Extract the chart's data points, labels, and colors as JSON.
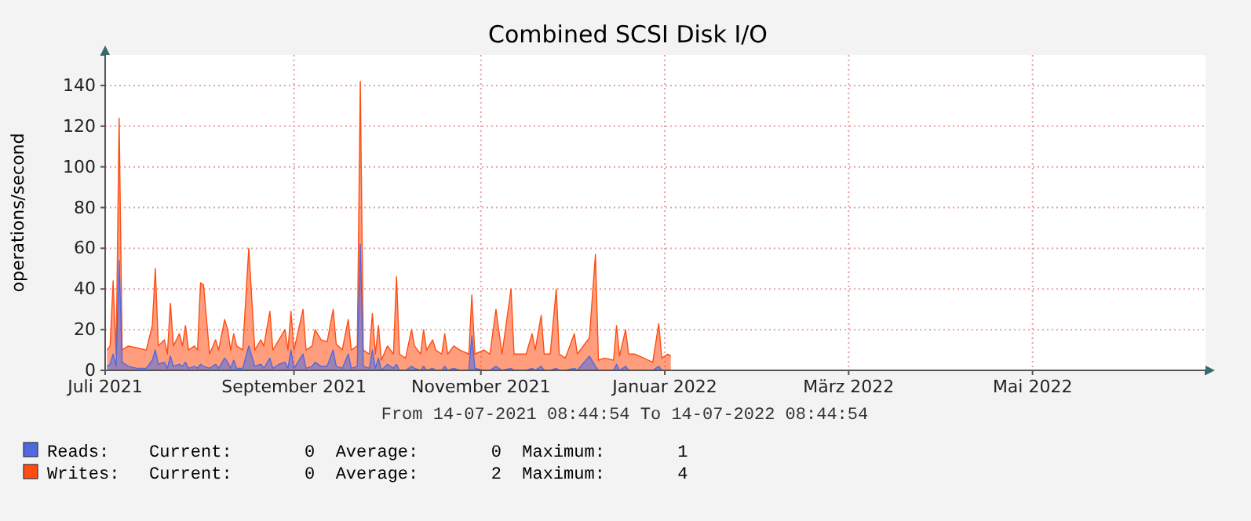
{
  "chart_data": {
    "type": "area",
    "title": "Combined SCSI Disk I/O",
    "ylabel": "operations/second",
    "x": [
      "2021-07-15",
      "2021-07-16",
      "2021-07-17",
      "2021-07-18",
      "2021-07-19",
      "2021-07-20",
      "2021-07-22",
      "2021-07-25",
      "2021-07-28",
      "2021-07-30",
      "2021-07-31",
      "2021-08-01",
      "2021-08-03",
      "2021-08-04",
      "2021-08-05",
      "2021-08-06",
      "2021-08-08",
      "2021-08-09",
      "2021-08-10",
      "2021-08-11",
      "2021-08-13",
      "2021-08-14",
      "2021-08-15",
      "2021-08-16",
      "2021-08-18",
      "2021-08-20",
      "2021-08-21",
      "2021-08-23",
      "2021-08-24",
      "2021-08-25",
      "2021-08-26",
      "2021-08-27",
      "2021-08-29",
      "2021-08-31",
      "2021-09-02",
      "2021-09-04",
      "2021-09-05",
      "2021-09-07",
      "2021-09-08",
      "2021-09-10",
      "2021-09-12",
      "2021-09-13",
      "2021-09-14",
      "2021-09-15",
      "2021-09-18",
      "2021-09-19",
      "2021-09-21",
      "2021-09-22",
      "2021-09-24",
      "2021-09-26",
      "2021-09-28",
      "2021-09-29",
      "2021-10-01",
      "2021-10-03",
      "2021-10-04",
      "2021-10-06",
      "2021-10-07",
      "2021-10-08",
      "2021-10-10",
      "2021-10-11",
      "2021-10-12",
      "2021-10-13",
      "2021-10-14",
      "2021-10-16",
      "2021-10-18",
      "2021-10-19",
      "2021-10-20",
      "2021-10-22",
      "2021-10-24",
      "2021-10-25",
      "2021-10-27",
      "2021-10-28",
      "2021-10-29",
      "2021-10-31",
      "2021-11-01",
      "2021-11-03",
      "2021-11-04",
      "2021-11-05",
      "2021-11-07",
      "2021-11-09",
      "2021-11-12",
      "2021-11-13",
      "2021-11-14",
      "2021-11-17",
      "2021-11-19",
      "2021-11-21",
      "2021-11-23",
      "2021-11-26",
      "2021-11-27",
      "2021-11-29",
      "2021-12-01",
      "2021-12-03",
      "2021-12-04",
      "2021-12-06",
      "2021-12-07",
      "2021-12-09",
      "2021-12-11",
      "2021-12-12",
      "2021-12-14",
      "2021-12-17",
      "2021-12-18",
      "2021-12-22",
      "2021-12-24",
      "2021-12-25",
      "2021-12-27",
      "2021-12-30",
      "2021-12-31",
      "2022-01-01",
      "2022-01-03",
      "2022-01-04",
      "2022-01-06",
      "2022-01-09",
      "2022-01-12",
      "2022-01-14",
      "2022-01-15",
      "2022-01-17",
      "2022-01-18"
    ],
    "series": [
      {
        "name": "Writes:",
        "color": "#ff4d12",
        "values": [
          10,
          12,
          44,
          8,
          124,
          10,
          12,
          11,
          10,
          22,
          50,
          12,
          15,
          8,
          33,
          12,
          18,
          12,
          22,
          10,
          12,
          10,
          43,
          42,
          8,
          15,
          10,
          25,
          20,
          10,
          18,
          12,
          10,
          60,
          10,
          15,
          12,
          29,
          10,
          15,
          20,
          10,
          29,
          10,
          30,
          10,
          12,
          20,
          15,
          14,
          30,
          13,
          10,
          25,
          10,
          12,
          142,
          10,
          8,
          28,
          8,
          22,
          5,
          12,
          8,
          46,
          8,
          6,
          20,
          12,
          8,
          20,
          10,
          15,
          10,
          8,
          18,
          8,
          12,
          10,
          8,
          37,
          8,
          10,
          8,
          30,
          8,
          40,
          8,
          8,
          8,
          18,
          10,
          27,
          8,
          8,
          40,
          8,
          6,
          18,
          8,
          16,
          57,
          5,
          6,
          5,
          22,
          7,
          20,
          8,
          8,
          6,
          4,
          23,
          6,
          8,
          7
        ]
      },
      {
        "name": "Reads:",
        "color": "#4f6ae0",
        "values": [
          2,
          3,
          8,
          2,
          54,
          4,
          2,
          1,
          1,
          5,
          10,
          3,
          4,
          1,
          7,
          2,
          3,
          2,
          4,
          1,
          2,
          1,
          3,
          2,
          1,
          3,
          1,
          6,
          4,
          1,
          5,
          1,
          1,
          12,
          2,
          3,
          1,
          6,
          1,
          3,
          4,
          1,
          10,
          1,
          8,
          1,
          2,
          4,
          2,
          2,
          10,
          2,
          1,
          8,
          1,
          2,
          62,
          2,
          1,
          10,
          1,
          6,
          0,
          3,
          1,
          3,
          0,
          0,
          2,
          1,
          0,
          2,
          0,
          1,
          0,
          0,
          2,
          0,
          1,
          0,
          0,
          17,
          1,
          0,
          0,
          2,
          0,
          1,
          0,
          0,
          0,
          1,
          0,
          2,
          0,
          0,
          1,
          0,
          0,
          1,
          0,
          7,
          2,
          0,
          0,
          0,
          3,
          0,
          2,
          0,
          0,
          0,
          0,
          2,
          0,
          0,
          0
        ]
      }
    ],
    "xlim": [
      "2021-07-14T08:44",
      "2022-07-14T08:44"
    ],
    "xticks": [
      {
        "value": "2021-07-14T08:44",
        "label": "Juli 2021"
      },
      {
        "value": "2021-09-15",
        "label": "September 2021"
      },
      {
        "value": "2021-11-16",
        "label": "November 2021"
      },
      {
        "value": "2022-01-16",
        "label": "Januar 2022"
      },
      {
        "value": "2022-03-18",
        "label": "März 2022"
      },
      {
        "value": "2022-05-18",
        "label": "Mai 2022"
      }
    ],
    "ylim": [
      0,
      155
    ],
    "yticks": [
      0,
      20,
      40,
      60,
      80,
      100,
      120,
      140
    ],
    "grid": true,
    "legend": "bottom left",
    "annotations": [
      "From 14-07-2021 08:44:54 To 14-07-2022 08:44:54",
      "Current:       0  Average:       0  Maximum:       1",
      "Current:       0  Average:       2  Maximum:       4"
    ]
  }
}
